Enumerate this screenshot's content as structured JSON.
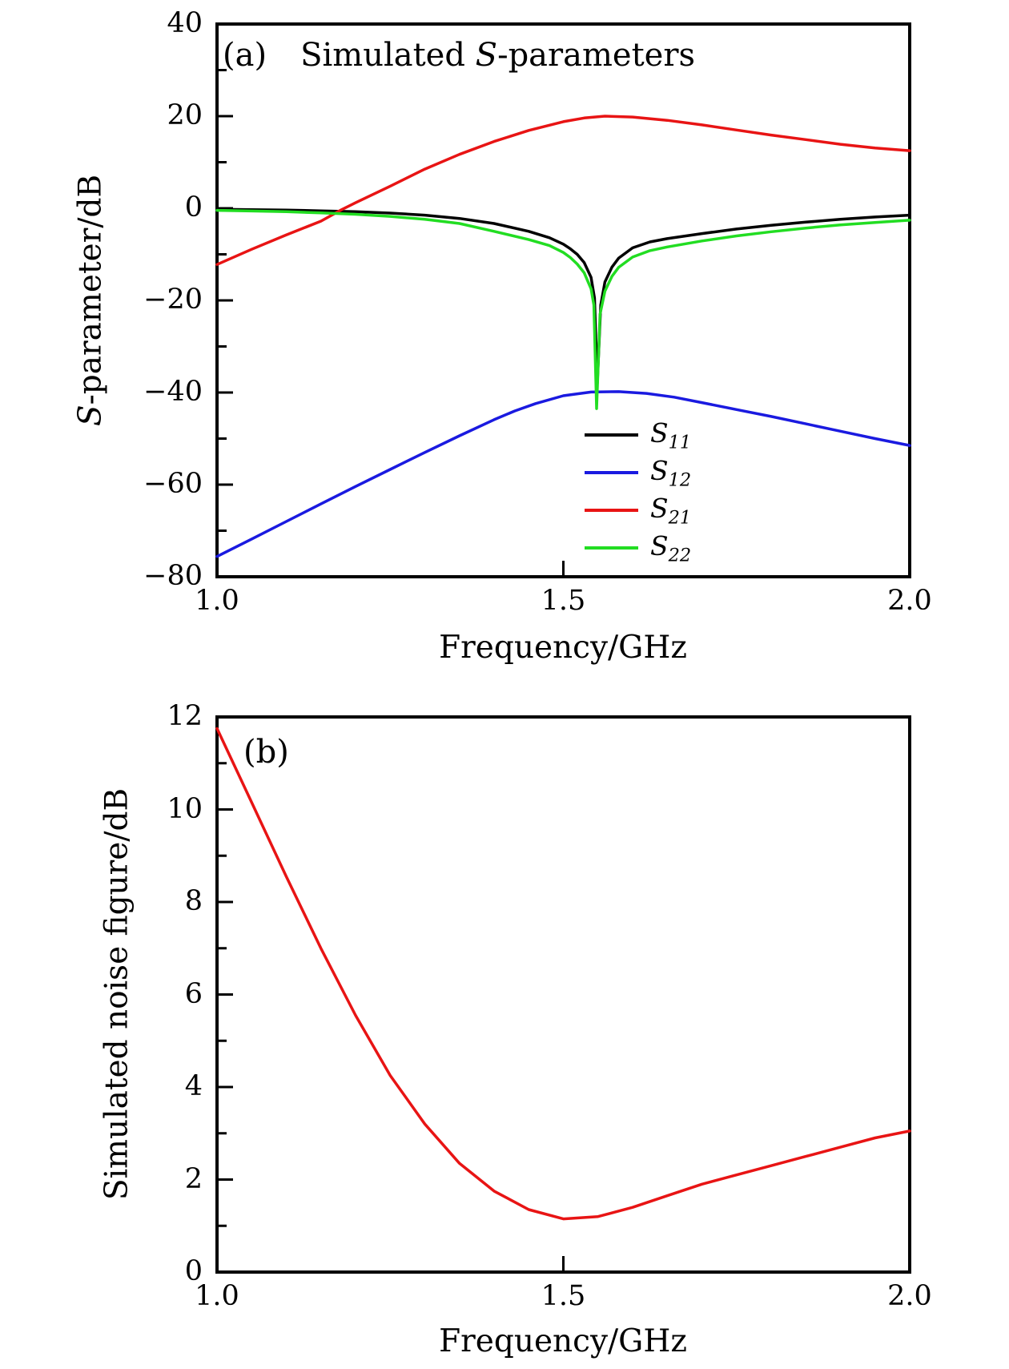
{
  "figure_labels": {
    "panel_a_tag": "(a)",
    "panel_a_title_plain": "Simulated ",
    "panel_a_title_italic": "S",
    "panel_a_title_rest": "-parameters",
    "panel_b_tag": "(b)"
  },
  "chart_data": [
    {
      "id": "a",
      "type": "line",
      "tag": "(a)",
      "title": "Simulated S-parameters",
      "xlabel": "Frequency/GHz",
      "ylabel_italic": "S",
      "ylabel_rest": "-parameter/dB",
      "xlim": [
        1.0,
        2.0
      ],
      "ylim": [
        -80,
        40
      ],
      "grid": false,
      "legend_position": "lower center-right",
      "xticks": [
        {
          "v": 1.0,
          "label": "1.0"
        },
        {
          "v": 1.5,
          "label": "1.5"
        },
        {
          "v": 2.0,
          "label": "2.0"
        }
      ],
      "yticks": [
        {
          "v": 40,
          "label": "40"
        },
        {
          "v": 20,
          "label": "20"
        },
        {
          "v": 0,
          "label": "0"
        },
        {
          "v": -20,
          "label": "−20"
        },
        {
          "v": -40,
          "label": "−40"
        },
        {
          "v": -60,
          "label": "−60"
        },
        {
          "v": -80,
          "label": "−80"
        }
      ],
      "minor_yticks": [
        30,
        10,
        -10,
        -30,
        -50,
        -70
      ],
      "minor_xticks": [],
      "legend": [
        {
          "main": "S",
          "sub": "11",
          "color": "#000000"
        },
        {
          "main": "S",
          "sub": "12",
          "color": "#1a1ae0"
        },
        {
          "main": "S",
          "sub": "21",
          "color": "#e81414"
        },
        {
          "main": "S",
          "sub": "22",
          "color": "#22dd22"
        }
      ],
      "series": [
        {
          "name": "S11",
          "color": "#000000",
          "points": [
            [
              1.0,
              -0.2
            ],
            [
              1.05,
              -0.3
            ],
            [
              1.1,
              -0.4
            ],
            [
              1.15,
              -0.55
            ],
            [
              1.2,
              -0.75
            ],
            [
              1.25,
              -1.05
            ],
            [
              1.3,
              -1.5
            ],
            [
              1.35,
              -2.2
            ],
            [
              1.4,
              -3.3
            ],
            [
              1.45,
              -5.0
            ],
            [
              1.48,
              -6.4
            ],
            [
              1.5,
              -7.8
            ],
            [
              1.51,
              -8.8
            ],
            [
              1.52,
              -10.0
            ],
            [
              1.53,
              -11.8
            ],
            [
              1.54,
              -15.0
            ],
            [
              1.545,
              -19.5
            ],
            [
              1.549,
              -38.0
            ],
            [
              1.554,
              -21.0
            ],
            [
              1.56,
              -16.0
            ],
            [
              1.57,
              -12.8
            ],
            [
              1.58,
              -10.8
            ],
            [
              1.6,
              -8.6
            ],
            [
              1.625,
              -7.3
            ],
            [
              1.65,
              -6.6
            ],
            [
              1.7,
              -5.5
            ],
            [
              1.75,
              -4.5
            ],
            [
              1.8,
              -3.7
            ],
            [
              1.85,
              -3.0
            ],
            [
              1.9,
              -2.4
            ],
            [
              1.95,
              -1.9
            ],
            [
              2.0,
              -1.5
            ]
          ]
        },
        {
          "name": "S12",
          "color": "#1a1ae0",
          "points": [
            [
              1.0,
              -75.6
            ],
            [
              1.05,
              -71.8
            ],
            [
              1.1,
              -68.0
            ],
            [
              1.15,
              -64.2
            ],
            [
              1.2,
              -60.4
            ],
            [
              1.25,
              -56.7
            ],
            [
              1.3,
              -53.0
            ],
            [
              1.35,
              -49.4
            ],
            [
              1.4,
              -45.9
            ],
            [
              1.43,
              -44.0
            ],
            [
              1.46,
              -42.4
            ],
            [
              1.5,
              -40.7
            ],
            [
              1.54,
              -39.9
            ],
            [
              1.58,
              -39.8
            ],
            [
              1.62,
              -40.2
            ],
            [
              1.66,
              -41.0
            ],
            [
              1.7,
              -42.2
            ],
            [
              1.75,
              -43.7
            ],
            [
              1.8,
              -45.2
            ],
            [
              1.85,
              -46.8
            ],
            [
              1.9,
              -48.4
            ],
            [
              1.95,
              -50.0
            ],
            [
              2.0,
              -51.5
            ]
          ]
        },
        {
          "name": "S21",
          "color": "#e81414",
          "points": [
            [
              1.0,
              -12.2
            ],
            [
              1.05,
              -8.9
            ],
            [
              1.1,
              -5.8
            ],
            [
              1.15,
              -2.8
            ],
            [
              1.18,
              -0.3
            ],
            [
              1.2,
              1.2
            ],
            [
              1.25,
              4.8
            ],
            [
              1.3,
              8.5
            ],
            [
              1.35,
              11.7
            ],
            [
              1.4,
              14.5
            ],
            [
              1.45,
              16.9
            ],
            [
              1.5,
              18.8
            ],
            [
              1.53,
              19.6
            ],
            [
              1.56,
              20.0
            ],
            [
              1.6,
              19.8
            ],
            [
              1.65,
              19.1
            ],
            [
              1.7,
              18.1
            ],
            [
              1.75,
              17.0
            ],
            [
              1.8,
              15.9
            ],
            [
              1.85,
              14.9
            ],
            [
              1.9,
              13.9
            ],
            [
              1.95,
              13.1
            ],
            [
              2.0,
              12.5
            ]
          ]
        },
        {
          "name": "S22",
          "color": "#22dd22",
          "points": [
            [
              1.0,
              -0.45
            ],
            [
              1.05,
              -0.6
            ],
            [
              1.1,
              -0.75
            ],
            [
              1.15,
              -1.0
            ],
            [
              1.2,
              -1.3
            ],
            [
              1.25,
              -1.75
            ],
            [
              1.3,
              -2.4
            ],
            [
              1.35,
              -3.3
            ],
            [
              1.4,
              -5.0
            ],
            [
              1.45,
              -6.8
            ],
            [
              1.48,
              -8.1
            ],
            [
              1.5,
              -9.6
            ],
            [
              1.51,
              -10.7
            ],
            [
              1.52,
              -12.1
            ],
            [
              1.53,
              -14.0
            ],
            [
              1.54,
              -17.5
            ],
            [
              1.544,
              -21.0
            ],
            [
              1.548,
              -43.5
            ],
            [
              1.553,
              -23.0
            ],
            [
              1.56,
              -18.0
            ],
            [
              1.57,
              -14.8
            ],
            [
              1.58,
              -12.8
            ],
            [
              1.6,
              -10.6
            ],
            [
              1.625,
              -9.2
            ],
            [
              1.65,
              -8.4
            ],
            [
              1.7,
              -7.1
            ],
            [
              1.75,
              -6.0
            ],
            [
              1.8,
              -5.1
            ],
            [
              1.85,
              -4.3
            ],
            [
              1.9,
              -3.6
            ],
            [
              1.95,
              -3.1
            ],
            [
              2.0,
              -2.6
            ]
          ]
        }
      ]
    },
    {
      "id": "b",
      "type": "line",
      "tag": "(b)",
      "title": "",
      "xlabel": "Frequency/GHz",
      "ylabel_italic": "",
      "ylabel_rest": "Simulated noise figure/dB",
      "xlim": [
        1.0,
        2.0
      ],
      "ylim": [
        0,
        12
      ],
      "grid": false,
      "xticks": [
        {
          "v": 1.0,
          "label": "1.0"
        },
        {
          "v": 1.5,
          "label": "1.5"
        },
        {
          "v": 2.0,
          "label": "2.0"
        }
      ],
      "yticks": [
        {
          "v": 12,
          "label": "12"
        },
        {
          "v": 10,
          "label": "10"
        },
        {
          "v": 8,
          "label": "8"
        },
        {
          "v": 6,
          "label": "6"
        },
        {
          "v": 4,
          "label": "4"
        },
        {
          "v": 2,
          "label": "2"
        },
        {
          "v": 0,
          "label": "0"
        }
      ],
      "minor_yticks": [
        11,
        9,
        7,
        5,
        3,
        1
      ],
      "minor_xticks": [],
      "legend": [],
      "series": [
        {
          "name": "NF",
          "color": "#e81414",
          "points": [
            [
              1.0,
              11.75
            ],
            [
              1.05,
              10.15
            ],
            [
              1.1,
              8.55
            ],
            [
              1.15,
              7.0
            ],
            [
              1.2,
              5.55
            ],
            [
              1.25,
              4.25
            ],
            [
              1.3,
              3.2
            ],
            [
              1.35,
              2.35
            ],
            [
              1.4,
              1.75
            ],
            [
              1.45,
              1.35
            ],
            [
              1.5,
              1.15
            ],
            [
              1.55,
              1.2
            ],
            [
              1.6,
              1.4
            ],
            [
              1.65,
              1.65
            ],
            [
              1.7,
              1.9
            ],
            [
              1.75,
              2.1
            ],
            [
              1.8,
              2.3
            ],
            [
              1.85,
              2.5
            ],
            [
              1.9,
              2.7
            ],
            [
              1.95,
              2.9
            ],
            [
              2.0,
              3.05
            ]
          ]
        }
      ]
    }
  ]
}
